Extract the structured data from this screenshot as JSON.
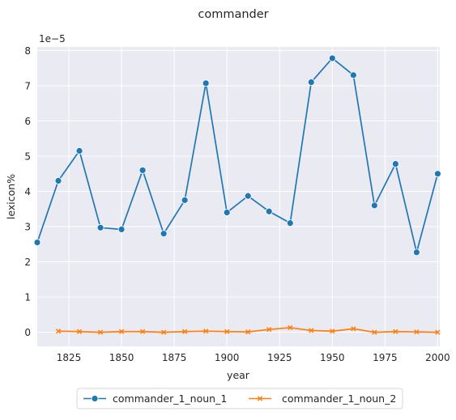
{
  "chart_data": {
    "type": "line",
    "title": "commander",
    "xlabel": "year",
    "ylabel": "lexicon%",
    "y_scale_label": "1e−5",
    "xlim": [
      1810,
      2001
    ],
    "ylim": [
      -0.4,
      8.1
    ],
    "x_ticks": [
      1825,
      1850,
      1875,
      1900,
      1925,
      1950,
      1975,
      2000
    ],
    "y_ticks": [
      0,
      1,
      2,
      3,
      4,
      5,
      6,
      7,
      8
    ],
    "grid": true,
    "legend_position": "bottom-center",
    "series": [
      {
        "name": "commander_1_noun_1",
        "color": "#1f77b4",
        "marker": "circle",
        "x": [
          1810,
          1820,
          1830,
          1840,
          1850,
          1860,
          1870,
          1880,
          1890,
          1900,
          1910,
          1920,
          1930,
          1940,
          1950,
          1960,
          1970,
          1980,
          1990,
          2000
        ],
        "y": [
          2.55,
          4.3,
          5.15,
          2.97,
          2.92,
          4.6,
          2.8,
          3.75,
          7.07,
          3.4,
          3.87,
          3.43,
          3.1,
          7.1,
          7.78,
          7.3,
          3.6,
          4.78,
          2.27,
          4.5
        ]
      },
      {
        "name": "commander_1_noun_2",
        "color": "#ff7f0e",
        "marker": "x",
        "x": [
          1820,
          1830,
          1840,
          1850,
          1860,
          1870,
          1880,
          1890,
          1900,
          1910,
          1920,
          1930,
          1940,
          1950,
          1960,
          1970,
          1980,
          1990,
          2000
        ],
        "y": [
          0.03,
          0.02,
          0.0,
          0.02,
          0.02,
          0.0,
          0.02,
          0.03,
          0.02,
          0.01,
          0.08,
          0.13,
          0.05,
          0.03,
          0.1,
          0.0,
          0.02,
          0.01,
          0.0
        ]
      }
    ]
  }
}
